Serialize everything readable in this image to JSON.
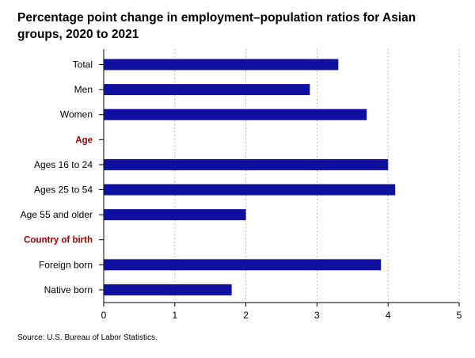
{
  "title": "Percentage point change in employment–population ratios for Asian groups, 2020 to 2021",
  "source": "Source: U.S. Bureau of Labor Statistics.",
  "colors": {
    "bar": "#1010a0",
    "section_label": "#a00000",
    "grid": "#aaaaaa",
    "axis": "#000000"
  },
  "chart_data": {
    "type": "bar",
    "orientation": "horizontal",
    "rows": [
      {
        "label": "Total",
        "value": 3.3,
        "kind": "bar"
      },
      {
        "label": "Men",
        "value": 2.9,
        "kind": "bar"
      },
      {
        "label": "Women",
        "value": 3.7,
        "kind": "bar"
      },
      {
        "label": "Age",
        "value": null,
        "kind": "section"
      },
      {
        "label": "Ages 16 to 24",
        "value": 4.0,
        "kind": "bar"
      },
      {
        "label": "Ages 25 to 54",
        "value": 4.1,
        "kind": "bar"
      },
      {
        "label": "Age 55 and older",
        "value": 2.0,
        "kind": "bar"
      },
      {
        "label": "Country of birth",
        "value": null,
        "kind": "section"
      },
      {
        "label": "Foreign born",
        "value": 3.9,
        "kind": "bar"
      },
      {
        "label": "Native born",
        "value": 1.8,
        "kind": "bar"
      }
    ],
    "xlim": [
      0,
      5
    ],
    "xticks": [
      "0",
      "1",
      "2",
      "3",
      "4",
      "5"
    ],
    "grid": "vertical dotted",
    "xlabel": "",
    "ylabel": ""
  }
}
